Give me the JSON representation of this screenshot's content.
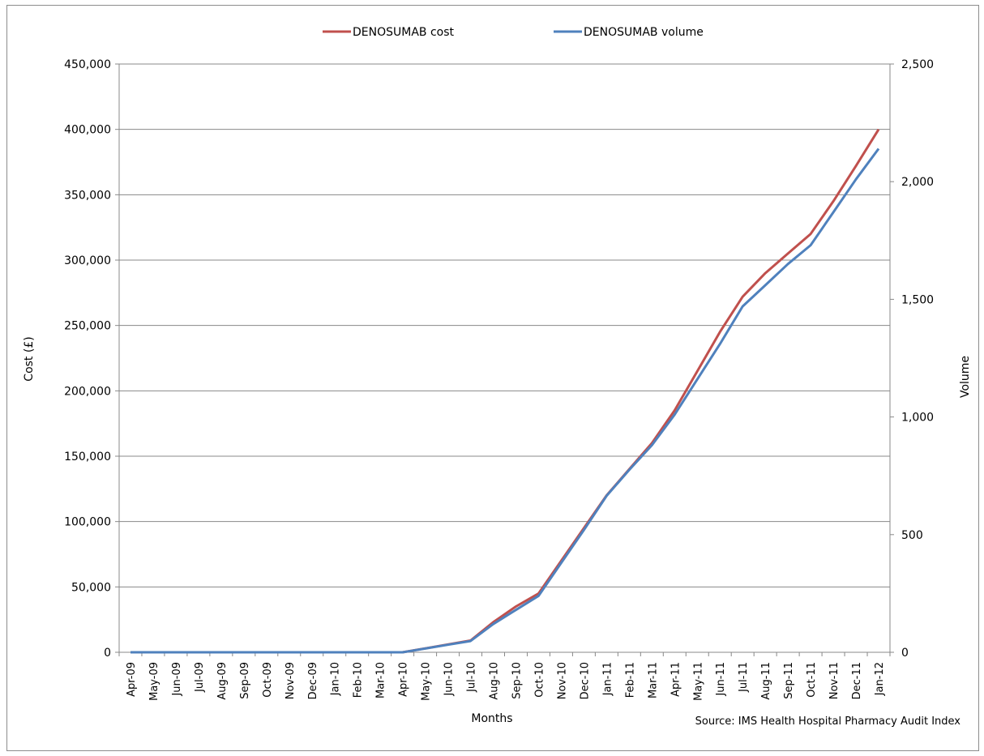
{
  "chart_data": {
    "type": "line",
    "x_title": "Months",
    "y_left_title": "Cost (£)",
    "y_right_title": "Volume",
    "source": "Source: IMS Health Hospital Pharmacy Audit Index",
    "categories": [
      "Apr-09",
      "May-09",
      "Jun-09",
      "Jul-09",
      "Aug-09",
      "Sep-09",
      "Oct-09",
      "Nov-09",
      "Dec-09",
      "Jan-10",
      "Feb-10",
      "Mar-10",
      "Apr-10",
      "May-10",
      "Jun-10",
      "Jul-10",
      "Aug-10",
      "Sep-10",
      "Oct-10",
      "Nov-10",
      "Dec-10",
      "Jan-11",
      "Feb-11",
      "Mar-11",
      "Apr-11",
      "May-11",
      "Jun-11",
      "Jul-11",
      "Aug-11",
      "Sep-11",
      "Oct-11",
      "Nov-11",
      "Dec-11",
      "Jan-12"
    ],
    "y_left": {
      "min": 0,
      "max": 450000,
      "step": 50000,
      "tick_labels": [
        "0",
        "50,000",
        "100,000",
        "150,000",
        "200,000",
        "250,000",
        "300,000",
        "350,000",
        "400,000",
        "450,000"
      ]
    },
    "y_right": {
      "min": 0,
      "max": 2500,
      "step": 500,
      "tick_labels": [
        "0",
        "500",
        "1,000",
        "1,500",
        "2,000",
        "2,500"
      ]
    },
    "grid": true,
    "legend_position": "top",
    "series": [
      {
        "name": "DENOSUMAB cost",
        "axis": "left",
        "color": "#c0504d",
        "values": [
          0,
          0,
          0,
          0,
          0,
          0,
          0,
          0,
          0,
          0,
          0,
          0,
          0,
          3000,
          6000,
          9000,
          23000,
          35000,
          45000,
          70000,
          95000,
          120000,
          140000,
          160000,
          185000,
          215000,
          245000,
          272000,
          290000,
          305000,
          320000,
          345000,
          372000,
          400000
        ]
      },
      {
        "name": "DENOSUMAB volume",
        "axis": "right",
        "color": "#4f81bd",
        "values": [
          0,
          0,
          0,
          0,
          0,
          0,
          0,
          0,
          0,
          0,
          0,
          0,
          0,
          16,
          32,
          48,
          120,
          180,
          240,
          380,
          520,
          665,
          775,
          880,
          1010,
          1160,
          1310,
          1470,
          1560,
          1650,
          1730,
          1870,
          2010,
          2140
        ]
      }
    ]
  }
}
